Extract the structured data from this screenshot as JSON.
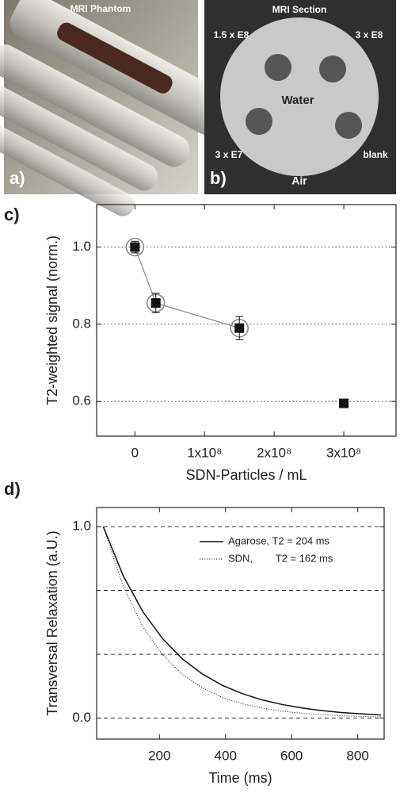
{
  "panels": {
    "a": {
      "title": "MRI Phantom",
      "label": "a)"
    },
    "b": {
      "title": "MRI Section",
      "label": "b)",
      "annotations": [
        "1.5 x E8",
        "3 x E8",
        "Water",
        "3 x E7",
        "blank",
        "Air"
      ]
    }
  },
  "chart_data": [
    {
      "type": "scatter",
      "panel_label": "c)",
      "xlabel": "SDN-Particles / mL",
      "ylabel": "T2-weighted signal (norm.)",
      "xlim": [
        -55000000,
        375000000
      ],
      "ylim": [
        0.51,
        1.11
      ],
      "xticks": [
        0,
        {
          "value": 100000000,
          "label": "1x10⁸"
        },
        {
          "value": 200000000,
          "label": "2x10⁸"
        },
        {
          "value": 300000000,
          "label": "3x10⁸"
        }
      ],
      "yticks": [
        0.6,
        0.8,
        {
          "value": 1,
          "label": "1.0"
        }
      ],
      "grid": true,
      "series": [
        {
          "color": "#888888",
          "marker": "circle",
          "line": true,
          "x": [
            0,
            30000000,
            150000000
          ],
          "values": [
            1.0,
            0.855,
            0.79
          ]
        },
        {
          "color": "#111111",
          "marker": "square",
          "line": false,
          "x": [
            0,
            30000000,
            150000000,
            300000000
          ],
          "values": [
            1.0,
            0.855,
            0.79,
            0.595
          ],
          "errors": [
            0.015,
            0.025,
            0.03,
            0.01
          ]
        }
      ]
    },
    {
      "type": "line",
      "panel_label": "d)",
      "xlabel": "Time (ms)",
      "ylabel": "Transversal Relaxation (a.U.)",
      "xlim": [
        10,
        880
      ],
      "ylim": [
        -0.11,
        1.1
      ],
      "xticks": [
        200,
        400,
        600,
        800
      ],
      "yticks": [
        {
          "value": 0,
          "label": "0.0"
        },
        {
          "value": 1,
          "label": "1.0"
        }
      ],
      "hlines": [
        0,
        0.333,
        0.667,
        1.0
      ],
      "x": [
        30,
        90,
        150,
        210,
        270,
        330,
        390,
        450,
        510,
        570,
        630,
        690,
        750,
        810,
        870
      ],
      "series": [
        {
          "name": "Agarose, T2 = 204 ms",
          "color": "#111111",
          "dash": "solid",
          "values": [
            1,
            0.745,
            0.555,
            0.414,
            0.308,
            0.23,
            0.171,
            0.128,
            0.095,
            0.071,
            0.053,
            0.039,
            0.029,
            0.022,
            0.016
          ]
        },
        {
          "name": "SDN,        T2 = 162 ms",
          "color": "#111111",
          "dash": "dotted",
          "values": [
            1,
            0.69,
            0.477,
            0.329,
            0.227,
            0.157,
            0.108,
            0.075,
            0.052,
            0.036,
            0.025,
            0.017,
            0.012,
            0.008,
            0.006
          ]
        }
      ]
    }
  ]
}
